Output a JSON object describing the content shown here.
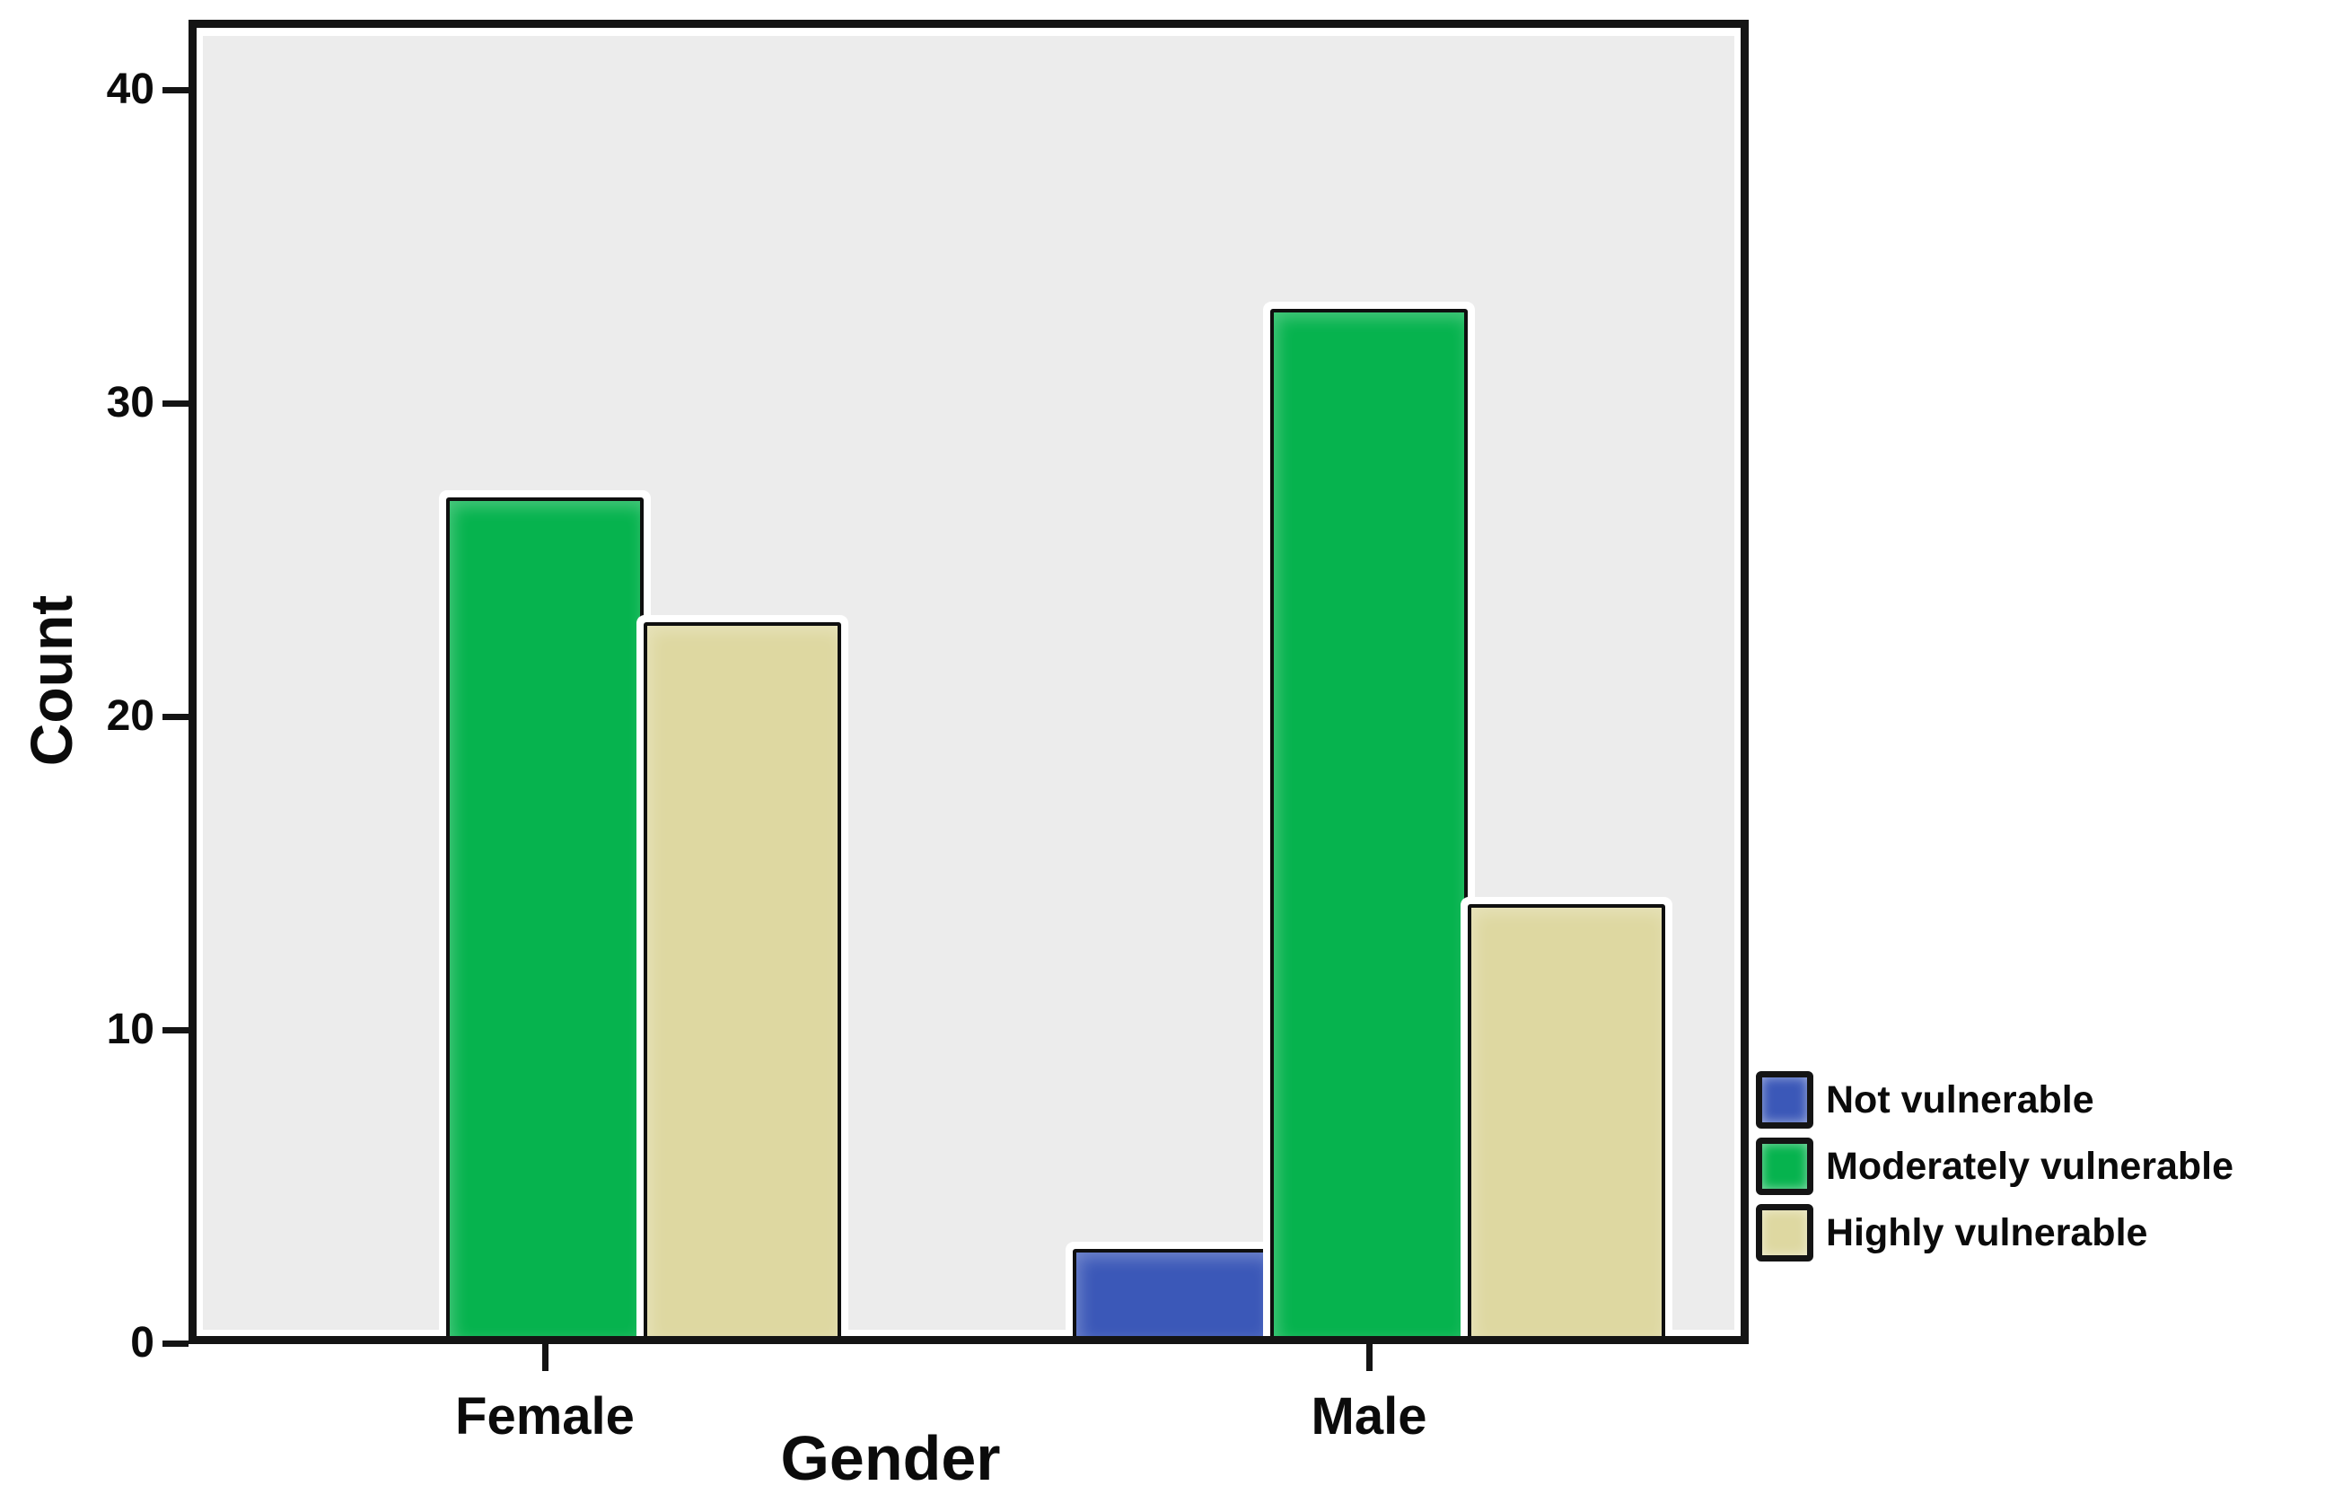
{
  "chart_data": {
    "type": "bar",
    "title": "",
    "xlabel": "Gender",
    "ylabel": "Count",
    "categories": [
      "Female",
      "Male"
    ],
    "series": [
      {
        "name": "Not vulnerable",
        "color": "#3b58b8",
        "values": [
          0,
          3
        ]
      },
      {
        "name": "Moderately vulnerable",
        "color": "#06b34e",
        "values": [
          27,
          33
        ]
      },
      {
        "name": "Highly vulnerable",
        "color": "#ded8a1",
        "values": [
          23,
          14
        ]
      }
    ],
    "y_ticks": [
      0,
      10,
      20,
      30,
      40
    ],
    "ylim": [
      0,
      42.2
    ],
    "grid": false,
    "legend_position": "right",
    "plot_background": "#ececec",
    "bar_border_color": "#0f0f0f",
    "frame_color": "#141414"
  }
}
